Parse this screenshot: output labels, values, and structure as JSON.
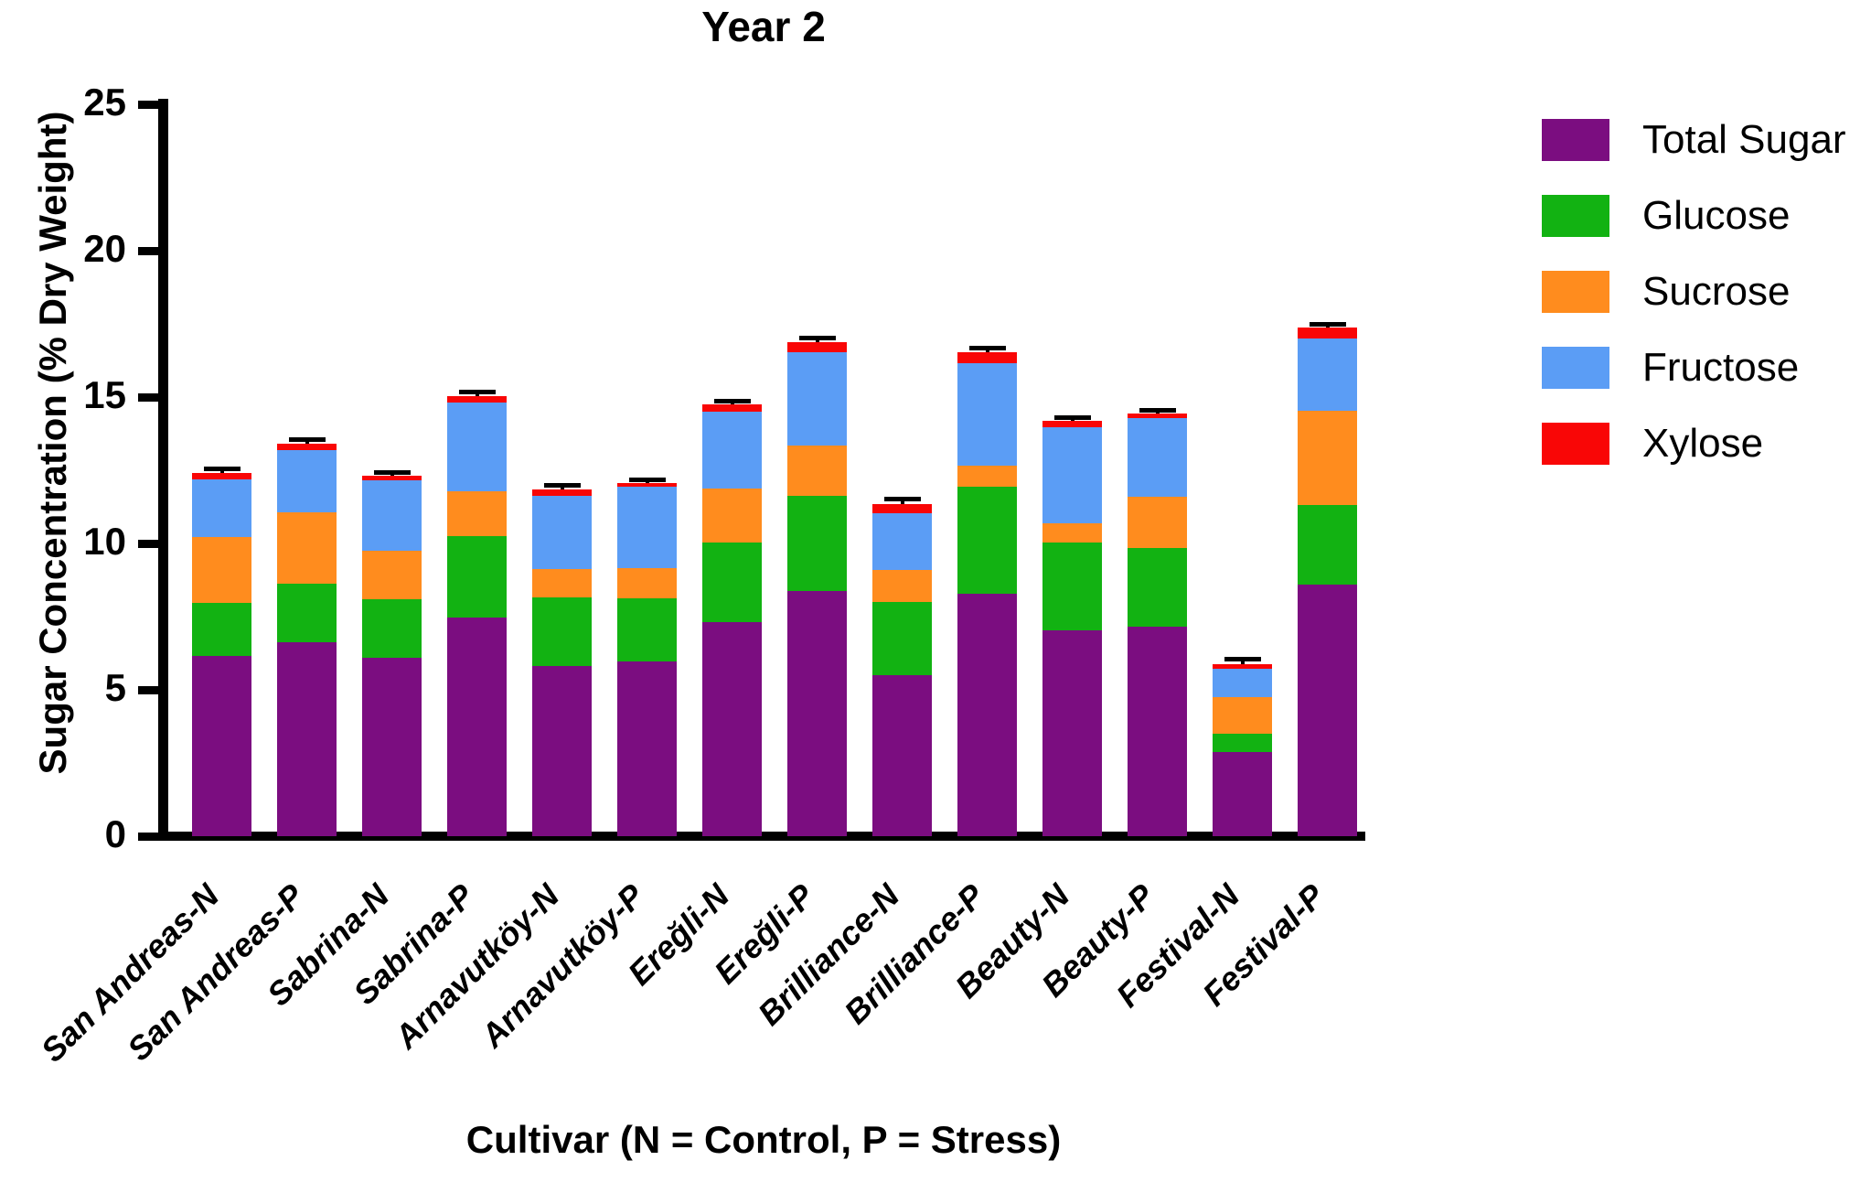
{
  "chart_data": {
    "type": "bar",
    "stacked": true,
    "title": "Year 2",
    "xlabel": "Cultivar (N = Control, P = Stress)",
    "ylabel": "Sugar Concentration (% Dry Weight)",
    "ylim": [
      0,
      25
    ],
    "yticks": [
      0,
      5,
      10,
      15,
      20,
      25
    ],
    "grid": false,
    "legend_position": "right",
    "categories": [
      "San Andreas-N",
      "San Andreas-P",
      "Sabrina-N",
      "Sabrina-P",
      "Arnavutköy-N",
      "Arnavutköy-P",
      "Ereğli-N",
      "Ereğli-P",
      "Brilliance-N",
      "Brilliance-P",
      "Beauty-N",
      "Beauty-P",
      "Festival-N",
      "Festival-P"
    ],
    "series": [
      {
        "name": "Total Sugar",
        "color": "#7B0D80",
        "values": [
          6.15,
          6.63,
          6.09,
          7.47,
          5.8,
          5.96,
          7.31,
          8.38,
          5.49,
          8.27,
          7.02,
          7.16,
          2.88,
          8.58
        ]
      },
      {
        "name": "Glucose",
        "color": "#12B212",
        "values": [
          1.81,
          1.99,
          2.0,
          2.78,
          2.37,
          2.17,
          2.73,
          3.25,
          2.5,
          3.67,
          3.02,
          2.67,
          0.62,
          2.73
        ]
      },
      {
        "name": "Sucrose",
        "color": "#FF8C1E",
        "values": [
          2.27,
          2.43,
          1.67,
          1.53,
          0.96,
          1.04,
          1.84,
          1.71,
          1.09,
          0.73,
          0.66,
          1.77,
          1.25,
          3.21
        ]
      },
      {
        "name": "Fructose",
        "color": "#5B9DF5",
        "values": [
          1.96,
          2.14,
          2.41,
          3.03,
          2.5,
          2.77,
          2.62,
          3.19,
          1.95,
          3.5,
          3.28,
          2.69,
          0.97,
          2.48
        ]
      },
      {
        "name": "Xylose",
        "color": "#F90606",
        "values": [
          0.22,
          0.22,
          0.13,
          0.23,
          0.2,
          0.12,
          0.26,
          0.36,
          0.31,
          0.35,
          0.21,
          0.15,
          0.16,
          0.37
        ]
      }
    ],
    "totals": [
      12.41,
      13.41,
      12.3,
      15.04,
      11.83,
      12.06,
      14.76,
      16.89,
      11.34,
      16.52,
      14.19,
      14.44,
      5.88,
      17.37
    ],
    "error_bars": [
      0.1,
      0.1,
      0.07,
      0.07,
      0.12,
      0.07,
      0.06,
      0.08,
      0.12,
      0.1,
      0.07,
      0.06,
      0.12,
      0.07
    ],
    "axis_color": "#000000"
  }
}
